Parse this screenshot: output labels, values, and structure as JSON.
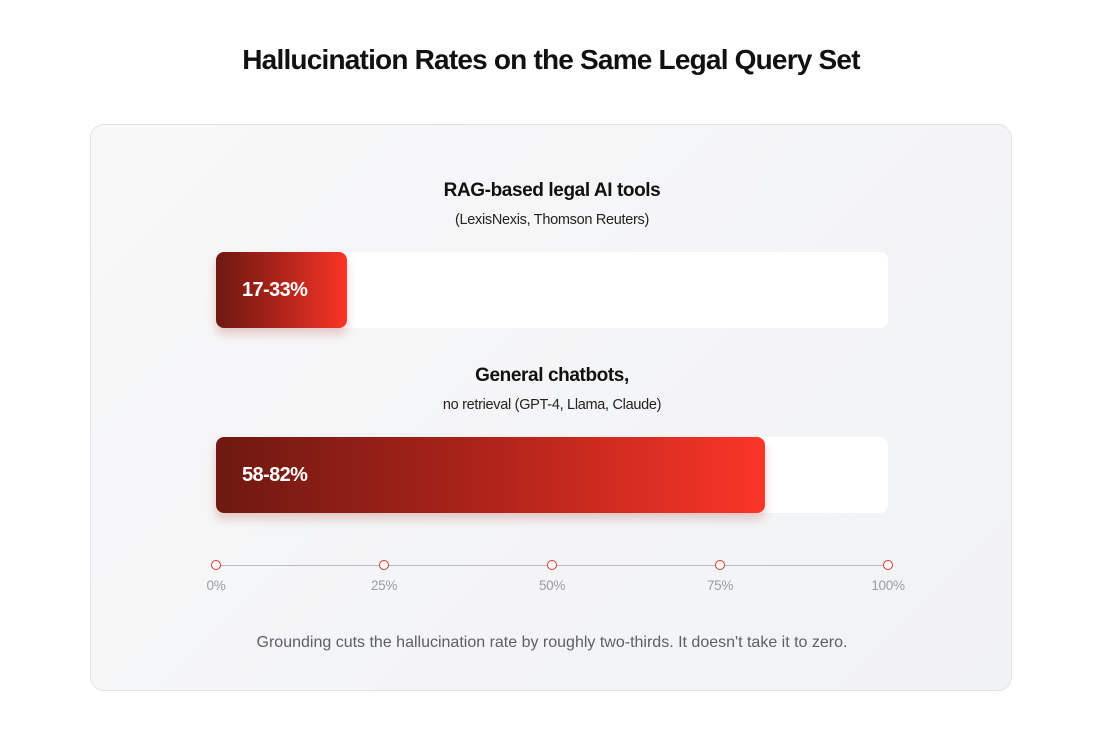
{
  "chart_data": {
    "type": "bar",
    "orientation": "horizontal",
    "title": "Hallucination Rates on the Same Legal Query Set",
    "groups": [
      {
        "title": "RAG-based legal AI tools",
        "subtitle": "(LexisNexis, Thomson Reuters)",
        "range_label": "17-33%",
        "range": [
          17,
          33
        ],
        "bar_fill_percent": 19.5
      },
      {
        "title": "General chatbots,",
        "subtitle": "no retrieval (GPT-4, Llama, Claude)",
        "range_label": "58-82%",
        "range": [
          58,
          82
        ],
        "bar_fill_percent": 81.7
      }
    ],
    "axis": {
      "ticks": [
        "0%",
        "25%",
        "50%",
        "75%",
        "100%"
      ],
      "tick_values": [
        0,
        25,
        50,
        75,
        100
      ],
      "range": [
        0,
        100
      ]
    },
    "caption": "Grounding cuts the hallucination rate by roughly two-thirds. It doesn't take it to zero.",
    "colors": {
      "bar_start": "#6e1911",
      "bar_end": "#fb3528",
      "axis_marker": "#e0352b"
    }
  }
}
